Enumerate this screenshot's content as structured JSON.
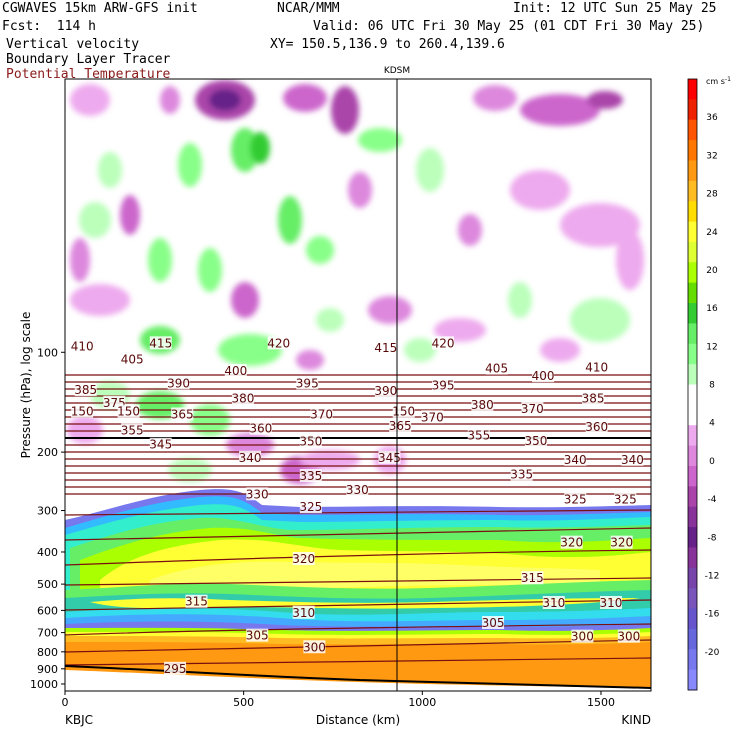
{
  "header": {
    "model": "CGWAVES 15km ARW-GFS init",
    "org": "NCAR/MMM",
    "init": "Init: 12 UTC Sun 25 May 25",
    "fcst": "Fcst:  114 h",
    "valid": "Valid: 06 UTC Fri 30 May 25 (01 CDT Fri 30 May 25)",
    "field1": "Vertical velocity",
    "field2": "Boundary Layer Tracer",
    "field3": "Potential Temperature",
    "xy": "XY= 150.5,136.9 to 260.4,139.6"
  },
  "colors": {
    "theta": "#7a0f0f",
    "field3_text": "#8b1a1a"
  },
  "chart_data": {
    "type": "heatmap",
    "title": "",
    "xlabel": "Distance (km)",
    "ylabel": "Pressure (hPa), log scale",
    "xlim": [
      0,
      1640
    ],
    "ylim": [
      1050,
      15
    ],
    "y_scale": "log",
    "x_ticks": [
      0,
      500,
      1000,
      1500
    ],
    "y_ticks": [
      100,
      200,
      300,
      400,
      500,
      600,
      700,
      800,
      900,
      1000
    ],
    "section_marker": {
      "label": "KDSM",
      "x": 930
    },
    "endpoints": {
      "left": "KBJC",
      "right": "KIND"
    },
    "colorbar": {
      "unit": "cm s",
      "unit_exp": "-1",
      "ticks": [
        36,
        32,
        28,
        24,
        20,
        16,
        12,
        8,
        4,
        0,
        -4,
        -8,
        -12,
        -16,
        -20
      ],
      "colors": [
        "#ff0000",
        "#ee2200",
        "#ff5500",
        "#ff7700",
        "#ff9911",
        "#ffbb22",
        "#ffdd00",
        "#ffff33",
        "#ddff33",
        "#aaff00",
        "#66dd00",
        "#33cc33",
        "#66ee66",
        "#88ff88",
        "#bbffbb",
        "#ffffff",
        "#ffffff",
        "#eeaaee",
        "#dd88dd",
        "#cc66cc",
        "#aa44aa",
        "#883399",
        "#662288",
        "#883399",
        "#7744aa",
        "#7755bb",
        "#6655cc",
        "#6666dd",
        "#7777ee",
        "#8888ff"
      ]
    },
    "theta_labels": [
      {
        "text": "410",
        "x": 20,
        "p": 96
      },
      {
        "text": "415",
        "x": 240,
        "p": 94
      },
      {
        "text": "420",
        "x": 570,
        "p": 94
      },
      {
        "text": "415",
        "x": 870,
        "p": 97
      },
      {
        "text": "420",
        "x": 1030,
        "p": 94
      },
      {
        "text": "405",
        "x": 160,
        "p": 105
      },
      {
        "text": "400",
        "x": 450,
        "p": 114
      },
      {
        "text": "405",
        "x": 1180,
        "p": 112
      },
      {
        "text": "400",
        "x": 1310,
        "p": 118
      },
      {
        "text": "410",
        "x": 1460,
        "p": 111
      },
      {
        "text": "385",
        "x": 30,
        "p": 130
      },
      {
        "text": "390",
        "x": 290,
        "p": 124
      },
      {
        "text": "395",
        "x": 650,
        "p": 124
      },
      {
        "text": "390",
        "x": 870,
        "p": 131
      },
      {
        "text": "395",
        "x": 1030,
        "p": 126
      },
      {
        "text": "375",
        "x": 110,
        "p": 142
      },
      {
        "text": "380",
        "x": 470,
        "p": 138
      },
      {
        "text": "380",
        "x": 1140,
        "p": 144
      },
      {
        "text": "370",
        "x": 1280,
        "p": 148
      },
      {
        "text": "385",
        "x": 1450,
        "p": 138
      },
      {
        "text": "150",
        "x": 20,
        "p": 151
      },
      {
        "text": "150",
        "x": 150,
        "p": 151
      },
      {
        "text": "365",
        "x": 300,
        "p": 154
      },
      {
        "text": "370",
        "x": 690,
        "p": 154
      },
      {
        "text": "150",
        "x": 920,
        "p": 151
      },
      {
        "text": "370",
        "x": 1000,
        "p": 157
      },
      {
        "text": "355",
        "x": 160,
        "p": 172
      },
      {
        "text": "360",
        "x": 520,
        "p": 170
      },
      {
        "text": "365",
        "x": 910,
        "p": 167
      },
      {
        "text": "355",
        "x": 1130,
        "p": 178
      },
      {
        "text": "350",
        "x": 1290,
        "p": 185
      },
      {
        "text": "360",
        "x": 1460,
        "p": 168
      },
      {
        "text": "345",
        "x": 240,
        "p": 190
      },
      {
        "text": "350",
        "x": 660,
        "p": 186
      },
      {
        "text": "340",
        "x": 490,
        "p": 208
      },
      {
        "text": "345",
        "x": 880,
        "p": 208
      },
      {
        "text": "340",
        "x": 1400,
        "p": 211
      },
      {
        "text": "340",
        "x": 1560,
        "p": 211
      },
      {
        "text": "335",
        "x": 660,
        "p": 236
      },
      {
        "text": "335",
        "x": 1250,
        "p": 234
      },
      {
        "text": "330",
        "x": 790,
        "p": 260
      },
      {
        "text": "330",
        "x": 510,
        "p": 268
      },
      {
        "text": "325",
        "x": 660,
        "p": 293
      },
      {
        "text": "325",
        "x": 1400,
        "p": 278
      },
      {
        "text": "325",
        "x": 1540,
        "p": 278
      },
      {
        "text": "320",
        "x": 640,
        "p": 420
      },
      {
        "text": "320",
        "x": 1390,
        "p": 375
      },
      {
        "text": "320",
        "x": 1530,
        "p": 375
      },
      {
        "text": "315",
        "x": 1280,
        "p": 480
      },
      {
        "text": "315",
        "x": 340,
        "p": 565
      },
      {
        "text": "310",
        "x": 640,
        "p": 610
      },
      {
        "text": "310",
        "x": 1340,
        "p": 570
      },
      {
        "text": "310",
        "x": 1500,
        "p": 570
      },
      {
        "text": "305",
        "x": 510,
        "p": 715
      },
      {
        "text": "305",
        "x": 1170,
        "p": 655
      },
      {
        "text": "300",
        "x": 670,
        "p": 775
      },
      {
        "text": "300",
        "x": 1420,
        "p": 720
      },
      {
        "text": "300",
        "x": 1550,
        "p": 720
      },
      {
        "text": "295",
        "x": 280,
        "p": 900
      }
    ]
  }
}
